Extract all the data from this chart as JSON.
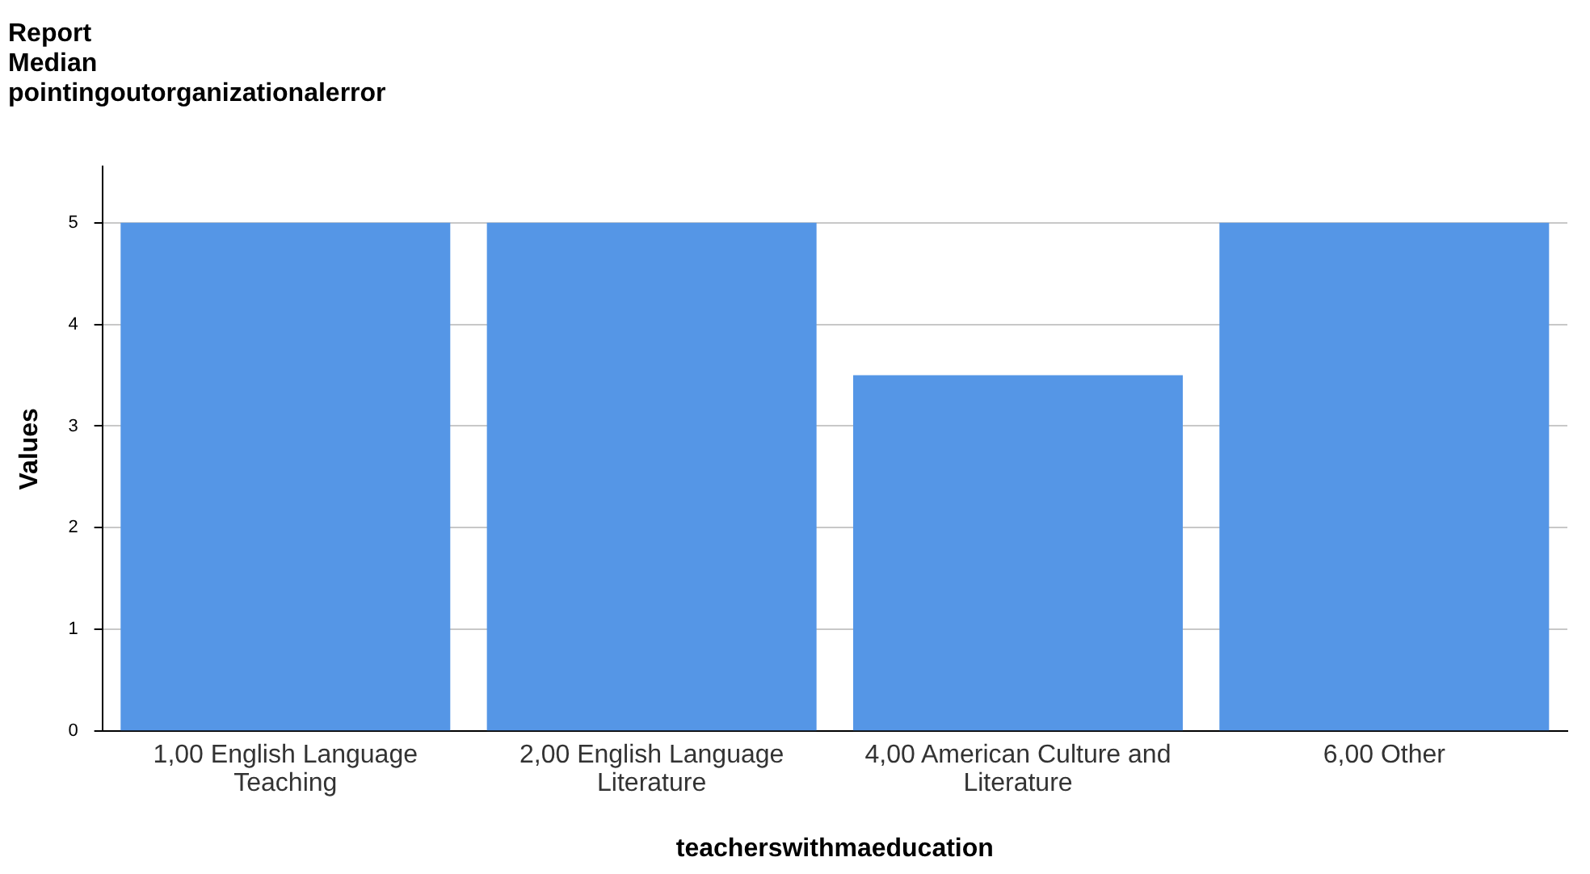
{
  "chart_data": {
    "type": "bar",
    "title": "Report\nMedian\npointingoutorganizationalerror",
    "xlabel": "teacherswithmaeducation",
    "ylabel": "Values",
    "categories": [
      "1,00 English Language Teaching",
      "2,00 English Language Literature",
      "4,00 American Culture and Literature",
      "6,00 Other"
    ],
    "values": [
      5,
      5,
      3.5,
      5
    ],
    "color": "#5596e6",
    "ylim": [
      0,
      5.55
    ],
    "yticks": [
      0,
      1,
      2,
      3,
      4,
      5
    ],
    "grid": "y"
  }
}
